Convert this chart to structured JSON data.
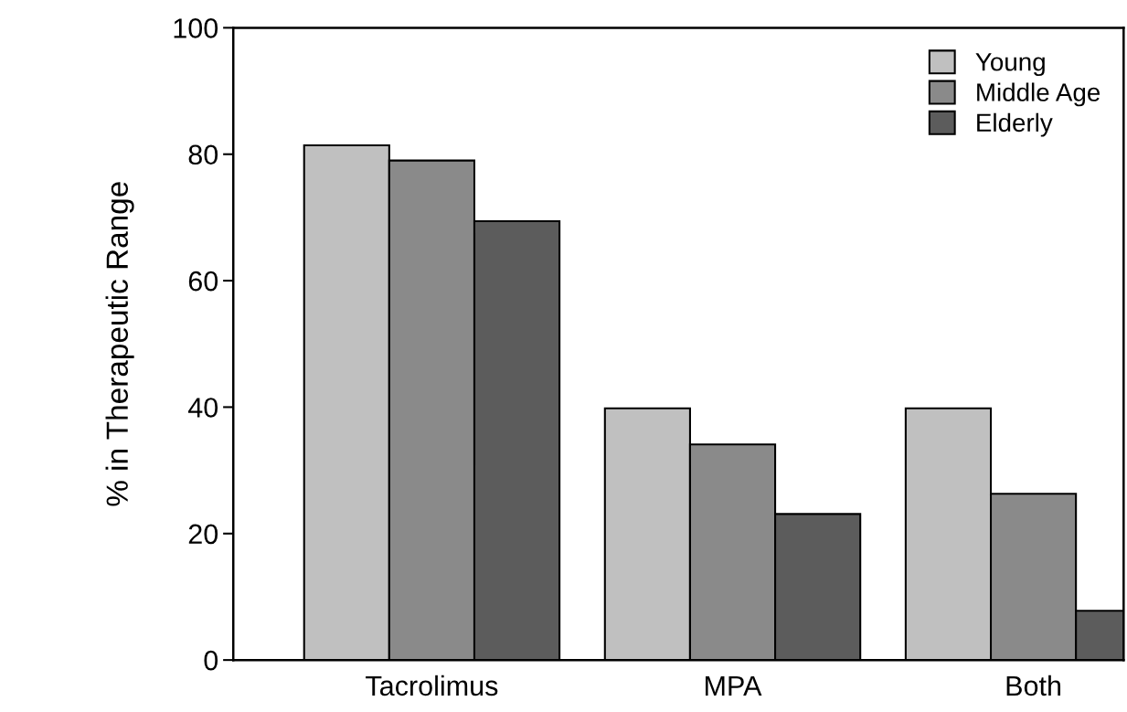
{
  "chart_data": {
    "type": "bar",
    "ylabel": "% in Therapeutic Range",
    "categories": [
      "Tacrolimus",
      "MPA",
      "Both"
    ],
    "series": [
      {
        "name": "Young",
        "color": "#c0c0c0",
        "values": [
          81.4,
          39.8,
          39.8
        ]
      },
      {
        "name": "Middle Age",
        "color": "#8a8a8a",
        "values": [
          79.0,
          34.1,
          26.3
        ]
      },
      {
        "name": "Elderly",
        "color": "#5c5c5c",
        "values": [
          69.4,
          23.1,
          7.8
        ]
      }
    ],
    "ylim": [
      0,
      100
    ],
    "yticks": [
      0,
      20,
      40,
      60,
      80,
      100
    ],
    "grid": false,
    "legend": "top right"
  }
}
